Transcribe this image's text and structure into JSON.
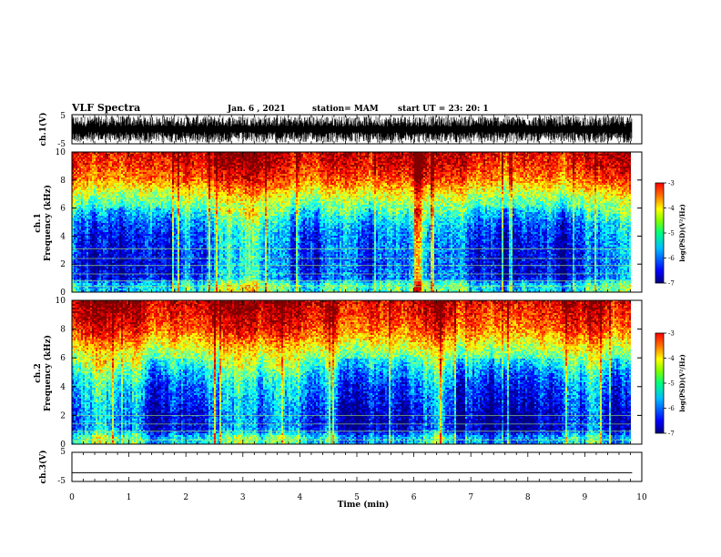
{
  "header": {
    "title": "VLF Spectra",
    "date": "Jan. 6 , 2021",
    "station": "station= MAM",
    "start": "start UT =  23: 20: 1"
  },
  "chart_data": [
    {
      "type": "line",
      "name": "ch1-waveform",
      "ylabel": "ch.1(V)",
      "ylim": [
        -5,
        5
      ],
      "yticks": [
        "5",
        "-5"
      ],
      "description_values": {
        "typical_amplitude_range": [
          -5,
          5
        ]
      }
    },
    {
      "type": "heatmap",
      "name": "ch1-spectrogram",
      "ylabel": "ch.1\nFrequency (kHz)",
      "ylabel_lines": [
        "ch.1",
        "Frequency (kHz)"
      ],
      "yticks": [
        "0",
        "2",
        "4",
        "6",
        "8",
        "10"
      ],
      "ylim": [
        0,
        10
      ],
      "xlim": [
        0,
        10
      ],
      "data_end_min": 9.83,
      "colorbar": {
        "label": "log(PSD)(V²/Hz)",
        "ticks": [
          "-3",
          "-4",
          "-5",
          "-6",
          "-7"
        ],
        "range": [
          -7,
          -3
        ]
      },
      "log_psd_profile_by_freq_khz": [
        [
          0.5,
          -5.3
        ],
        [
          1,
          -6.2
        ],
        [
          2,
          -6.3
        ],
        [
          3,
          -6.2
        ],
        [
          4,
          -6.1
        ],
        [
          5,
          -5.8
        ],
        [
          6,
          -5.2
        ],
        [
          7,
          -4.6
        ],
        [
          8,
          -3.9
        ],
        [
          9,
          -3.5
        ],
        [
          10,
          -3.3
        ]
      ],
      "horizontal_lines_khz": [
        0.4,
        0.8,
        1.3,
        1.9,
        2.4,
        3.1
      ]
    },
    {
      "type": "heatmap",
      "name": "ch2-spectrogram",
      "ylabel": "ch.2\nFrequency (kHz)",
      "ylabel_lines": [
        "ch.2",
        "Frequency (kHz)"
      ],
      "yticks": [
        "0",
        "2",
        "4",
        "6",
        "8",
        "10"
      ],
      "ylim": [
        0,
        10
      ],
      "xlim": [
        0,
        10
      ],
      "data_end_min": 9.83,
      "colorbar": {
        "label": "log(PSD)(V²/Hz)",
        "ticks": [
          "-3",
          "-4",
          "-5",
          "-6",
          "-7"
        ],
        "range": [
          -7,
          -3
        ]
      },
      "log_psd_profile_by_freq_khz": [
        [
          0.5,
          -5.4
        ],
        [
          1,
          -6.3
        ],
        [
          2,
          -6.3
        ],
        [
          3,
          -6.1
        ],
        [
          4,
          -5.9
        ],
        [
          5,
          -5.5
        ],
        [
          6,
          -4.9
        ],
        [
          7,
          -4.3
        ],
        [
          8,
          -3.7
        ],
        [
          9,
          -3.4
        ],
        [
          10,
          -3.2
        ]
      ],
      "horizontal_lines_khz": [
        0.3,
        0.9,
        1.4,
        2.0
      ]
    },
    {
      "type": "line",
      "name": "ch3-waveform",
      "ylabel": "ch.3(V)",
      "ylim": [
        -5,
        5
      ],
      "yticks": [
        "5",
        "-5"
      ],
      "x": [
        0,
        9.83
      ],
      "y": [
        -2,
        -2
      ]
    }
  ],
  "x_axis": {
    "label": "Time (min)",
    "ticks": [
      "0",
      "1",
      "2",
      "3",
      "4",
      "5",
      "6",
      "7",
      "8",
      "9",
      "10"
    ],
    "xlim": [
      0,
      10
    ]
  },
  "colors": {
    "colormap": [
      "#000080",
      "#0000ff",
      "#0080ff",
      "#00ffff",
      "#80ff80",
      "#ffff00",
      "#ff8000",
      "#ff0000",
      "#800000"
    ]
  }
}
